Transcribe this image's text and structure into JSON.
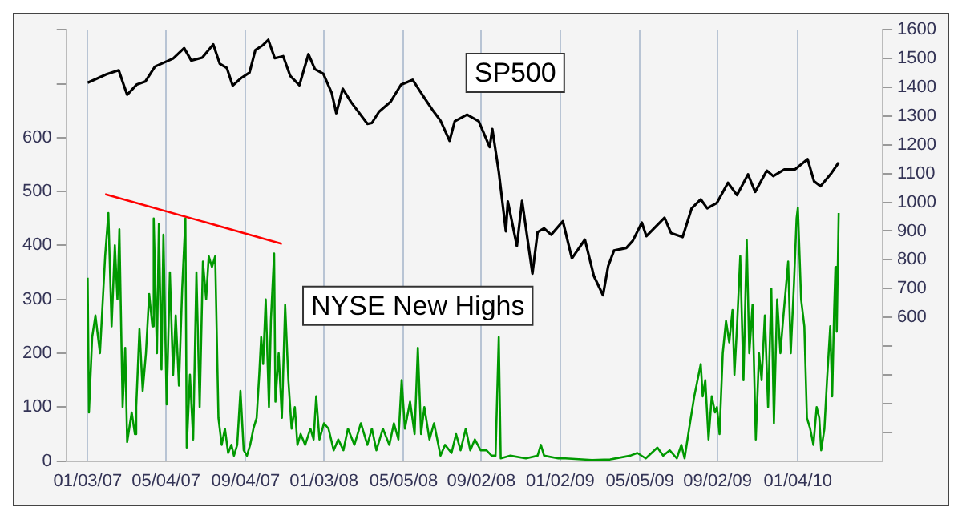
{
  "chart_data": {
    "type": "line",
    "xlim": [
      "2006-12-01",
      "2010-05-15"
    ],
    "xticks": [
      {
        "value": "2007-01-03",
        "label": "01/03/07"
      },
      {
        "value": "2007-05-04",
        "label": "05/04/07"
      },
      {
        "value": "2007-09-04",
        "label": "09/04/07"
      },
      {
        "value": "2008-01-03",
        "label": "01/03/08"
      },
      {
        "value": "2008-05-05",
        "label": "05/05/08"
      },
      {
        "value": "2008-09-02",
        "label": "09/02/08"
      },
      {
        "value": "2009-01-02",
        "label": "01/02/09"
      },
      {
        "value": "2009-05-05",
        "label": "05/05/09"
      },
      {
        "value": "2009-09-02",
        "label": "09/02/09"
      },
      {
        "value": "2010-01-04",
        "label": "01/04/10"
      }
    ],
    "ylim": [
      0,
      800
    ],
    "yticks": [
      0,
      100,
      200,
      300,
      400,
      500,
      600,
      {
        "value": 700,
        "label": null
      },
      {
        "value": 800,
        "label": null
      }
    ],
    "y2lim": [
      100,
      1600
    ],
    "y2ticks": [
      {
        "value": 200,
        "label": null
      },
      {
        "value": 300,
        "label": null
      },
      {
        "value": 400,
        "label": null
      },
      {
        "value": 500,
        "label": null
      },
      600,
      700,
      800,
      900,
      1000,
      1100,
      1200,
      1300,
      1400,
      1500,
      1600
    ],
    "grid": "x",
    "legend": false,
    "marker": "none",
    "line_style": "solid",
    "series": [
      {
        "name": "SP500",
        "color": "#000000",
        "axis": "y2",
        "x": [
          "2007-01-03",
          "2007-01-17",
          "2007-02-01",
          "2007-02-20",
          "2007-02-28",
          "2007-03-05",
          "2007-03-20",
          "2007-04-02",
          "2007-04-17",
          "2007-05-01",
          "2007-05-15",
          "2007-06-01",
          "2007-06-12",
          "2007-06-29",
          "2007-07-16",
          "2007-07-26",
          "2007-08-06",
          "2007-08-15",
          "2007-08-28",
          "2007-09-10",
          "2007-09-19",
          "2007-10-01",
          "2007-10-09",
          "2007-10-19",
          "2007-11-01",
          "2007-11-12",
          "2007-11-26",
          "2007-12-10",
          "2007-12-20",
          "2008-01-02",
          "2008-01-15",
          "2008-01-22",
          "2008-02-01",
          "2008-02-14",
          "2008-03-10",
          "2008-03-17",
          "2008-03-28",
          "2008-04-15",
          "2008-05-01",
          "2008-05-19",
          "2008-06-02",
          "2008-06-20",
          "2008-07-01",
          "2008-07-15",
          "2008-07-23",
          "2008-08-11",
          "2008-08-29",
          "2008-09-15",
          "2008-09-19",
          "2008-09-29",
          "2008-10-10",
          "2008-10-13",
          "2008-10-27",
          "2008-11-04",
          "2008-11-20",
          "2008-11-28",
          "2008-12-08",
          "2008-12-19",
          "2009-01-06",
          "2009-01-20",
          "2009-02-09",
          "2009-02-23",
          "2009-03-09",
          "2009-03-17",
          "2009-03-26",
          "2009-04-14",
          "2009-04-24",
          "2009-05-08",
          "2009-05-15",
          "2009-06-12",
          "2009-06-22",
          "2009-07-10",
          "2009-07-24",
          "2009-08-07",
          "2009-08-17",
          "2009-09-01",
          "2009-09-18",
          "2009-10-02",
          "2009-10-19",
          "2009-10-30",
          "2009-11-17",
          "2009-11-27",
          "2009-12-14",
          "2009-12-31",
          "2010-01-19",
          "2010-01-29",
          "2010-02-08",
          "2010-02-25",
          "2010-03-08"
        ],
        "values": [
          1416,
          1430,
          1445,
          1459,
          1406,
          1374,
          1410,
          1420,
          1472,
          1486,
          1500,
          1536,
          1493,
          1503,
          1549,
          1482,
          1467,
          1406,
          1432,
          1451,
          1529,
          1547,
          1565,
          1501,
          1508,
          1439,
          1407,
          1515,
          1463,
          1447,
          1380,
          1310,
          1395,
          1348,
          1273,
          1276,
          1315,
          1350,
          1409,
          1426,
          1377,
          1317,
          1284,
          1214,
          1282,
          1305,
          1282,
          1192,
          1255,
          1106,
          899,
          1003,
          848,
          1005,
          752,
          896,
          909,
          887,
          934,
          805,
          870,
          743,
          677,
          778,
          832,
          841,
          866,
          929,
          882,
          946,
          893,
          879,
          979,
          1010,
          979,
          998,
          1068,
          1025,
          1097,
          1036,
          1110,
          1091,
          1114,
          1115,
          1150,
          1073,
          1056,
          1102,
          1138
        ]
      },
      {
        "name": "NYSE New Highs",
        "color": "#009900",
        "x": [
          "2007-01-03",
          "2007-01-05",
          "2007-01-10",
          "2007-01-15",
          "2007-01-22",
          "2007-01-30",
          "2007-02-04",
          "2007-02-09",
          "2007-02-14",
          "2007-02-18",
          "2007-02-21",
          "2007-02-26",
          "2007-03-02",
          "2007-03-05",
          "2007-03-12",
          "2007-03-17",
          "2007-03-19",
          "2007-03-24",
          "2007-03-29",
          "2007-04-03",
          "2007-04-08",
          "2007-04-13",
          "2007-04-15",
          "2007-04-20",
          "2007-04-23",
          "2007-04-27",
          "2007-04-30",
          "2007-05-05",
          "2007-05-10",
          "2007-05-15",
          "2007-05-19",
          "2007-05-24",
          "2007-05-29",
          "2007-06-03",
          "2007-06-05",
          "2007-06-10",
          "2007-06-15",
          "2007-06-20",
          "2007-06-25",
          "2007-06-30",
          "2007-07-05",
          "2007-07-09",
          "2007-07-14",
          "2007-07-19",
          "2007-07-24",
          "2007-07-29",
          "2007-08-03",
          "2007-08-08",
          "2007-08-13",
          "2007-08-17",
          "2007-08-22",
          "2007-08-27",
          "2007-09-01",
          "2007-09-06",
          "2007-09-11",
          "2007-09-16",
          "2007-09-21",
          "2007-09-25",
          "2007-09-28",
          "2007-10-01",
          "2007-10-05",
          "2007-10-10",
          "2007-10-13",
          "2007-10-18",
          "2007-10-20",
          "2007-10-25",
          "2007-10-30",
          "2007-11-04",
          "2007-11-09",
          "2007-11-14",
          "2007-11-19",
          "2007-11-23",
          "2007-11-28",
          "2007-12-05",
          "2007-12-13",
          "2007-12-18",
          "2007-12-22",
          "2007-12-27",
          "2008-01-03",
          "2008-01-10",
          "2008-01-18",
          "2008-01-25",
          "2008-02-02",
          "2008-02-09",
          "2008-02-19",
          "2008-02-29",
          "2008-03-10",
          "2008-03-17",
          "2008-03-24",
          "2008-04-03",
          "2008-04-13",
          "2008-04-20",
          "2008-04-27",
          "2008-05-02",
          "2008-05-07",
          "2008-05-15",
          "2008-05-22",
          "2008-05-27",
          "2008-06-01",
          "2008-06-06",
          "2008-06-14",
          "2008-06-21",
          "2008-07-01",
          "2008-07-08",
          "2008-07-18",
          "2008-07-25",
          "2008-08-01",
          "2008-08-09",
          "2008-08-16",
          "2008-08-23",
          "2008-09-01",
          "2008-09-10",
          "2008-09-18",
          "2008-09-24",
          "2008-09-29",
          "2008-10-02",
          "2008-10-17",
          "2008-11-10",
          "2008-11-28",
          "2008-12-03",
          "2008-12-08",
          "2008-12-30",
          "2009-01-10",
          "2009-02-20",
          "2009-03-20",
          "2009-04-20",
          "2009-05-01",
          "2009-05-14",
          "2009-06-01",
          "2009-06-10",
          "2009-06-20",
          "2009-07-01",
          "2009-07-08",
          "2009-07-13",
          "2009-07-20",
          "2009-07-28",
          "2009-08-07",
          "2009-08-10",
          "2009-08-14",
          "2009-08-19",
          "2009-08-24",
          "2009-08-29",
          "2009-09-01",
          "2009-09-05",
          "2009-09-10",
          "2009-09-15",
          "2009-09-20",
          "2009-09-25",
          "2009-09-28",
          "2009-10-02",
          "2009-10-07",
          "2009-10-12",
          "2009-10-17",
          "2009-10-21",
          "2009-10-26",
          "2009-10-31",
          "2009-11-05",
          "2009-11-09",
          "2009-11-14",
          "2009-11-19",
          "2009-11-24",
          "2009-11-28",
          "2009-12-03",
          "2009-12-08",
          "2009-12-12",
          "2009-12-20",
          "2009-12-24",
          "2009-12-29",
          "2010-01-02",
          "2010-01-04",
          "2010-01-09",
          "2010-01-14",
          "2010-01-18",
          "2010-01-23",
          "2010-01-28",
          "2010-02-02",
          "2010-02-06",
          "2010-02-09",
          "2010-02-14",
          "2010-02-18",
          "2010-02-23",
          "2010-02-26",
          "2010-03-01",
          "2010-03-03",
          "2010-03-05",
          "2010-03-08"
        ],
        "values": [
          340,
          90,
          230,
          270,
          200,
          380,
          460,
          250,
          400,
          300,
          430,
          100,
          210,
          35,
          90,
          50,
          100,
          245,
          130,
          200,
          310,
          250,
          450,
          200,
          440,
          170,
          420,
          105,
          350,
          160,
          270,
          140,
          320,
          450,
          25,
          160,
          40,
          350,
          100,
          370,
          300,
          380,
          360,
          380,
          80,
          30,
          60,
          15,
          30,
          10,
          30,
          130,
          20,
          10,
          30,
          60,
          80,
          160,
          230,
          180,
          300,
          100,
          260,
          385,
          110,
          200,
          80,
          290,
          150,
          60,
          100,
          30,
          50,
          30,
          60,
          40,
          120,
          40,
          70,
          60,
          20,
          40,
          20,
          60,
          30,
          70,
          30,
          60,
          20,
          60,
          30,
          70,
          40,
          150,
          60,
          110,
          50,
          210,
          50,
          100,
          40,
          70,
          10,
          30,
          15,
          50,
          20,
          60,
          20,
          40,
          20,
          20,
          10,
          10,
          230,
          5,
          10,
          5,
          10,
          30,
          10,
          5,
          5,
          2,
          3,
          10,
          15,
          5,
          25,
          10,
          20,
          5,
          30,
          5,
          60,
          120,
          180,
          120,
          150,
          40,
          120,
          90,
          100,
          50,
          200,
          260,
          220,
          280,
          160,
          250,
          380,
          150,
          410,
          200,
          290,
          40,
          200,
          150,
          270,
          100,
          320,
          70,
          300,
          200,
          260,
          370,
          200,
          330,
          450,
          470,
          300,
          250,
          80,
          60,
          30,
          100,
          80,
          20,
          60,
          150,
          250,
          120,
          280,
          360,
          240,
          460
        ]
      },
      {
        "type": "line",
        "color": "#ff0000",
        "x": [
          "2007-01-30",
          "2007-10-30"
        ],
        "values": [
          495,
          403
        ]
      }
    ]
  }
}
